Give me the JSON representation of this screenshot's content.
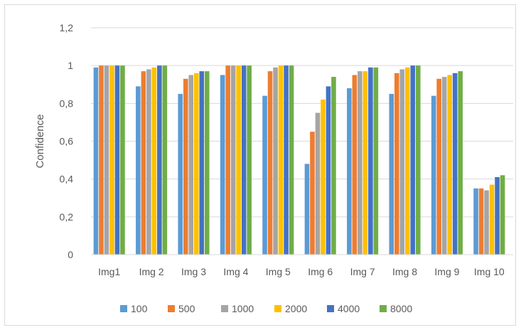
{
  "chart_data": {
    "type": "bar",
    "title": "",
    "xlabel": "",
    "ylabel": "Confidence",
    "ylim": [
      0,
      1.2
    ],
    "yticks": [
      "0",
      "0,2",
      "0,4",
      "0,6",
      "0,8",
      "1",
      "1,2"
    ],
    "ytick_values": [
      0,
      0.2,
      0.4,
      0.6,
      0.8,
      1.0,
      1.2
    ],
    "grid": true,
    "legend_position": "bottom",
    "categories": [
      "Img1",
      "Img 2",
      "Img 3",
      "Img 4",
      "Img 5",
      "Img 6",
      "Img 7",
      "Img 8",
      "Img 9",
      "Img 10"
    ],
    "series": [
      {
        "name": "100",
        "color": "#5B9BD5",
        "values": [
          0.99,
          0.89,
          0.85,
          0.95,
          0.84,
          0.48,
          0.88,
          0.85,
          0.84,
          0.35
        ]
      },
      {
        "name": "500",
        "color": "#ED7D31",
        "values": [
          1.0,
          0.97,
          0.93,
          1.0,
          0.97,
          0.65,
          0.95,
          0.96,
          0.93,
          0.35
        ]
      },
      {
        "name": "1000",
        "color": "#A5A5A5",
        "values": [
          1.0,
          0.98,
          0.95,
          1.0,
          0.99,
          0.75,
          0.97,
          0.98,
          0.94,
          0.34
        ]
      },
      {
        "name": "2000",
        "color": "#FFC000",
        "values": [
          1.0,
          0.99,
          0.96,
          1.0,
          1.0,
          0.82,
          0.97,
          0.99,
          0.95,
          0.37
        ]
      },
      {
        "name": "4000",
        "color": "#4472C4",
        "values": [
          1.0,
          1.0,
          0.97,
          1.0,
          1.0,
          0.89,
          0.99,
          1.0,
          0.96,
          0.41
        ]
      },
      {
        "name": "8000",
        "color": "#70AD47",
        "values": [
          1.0,
          1.0,
          0.97,
          1.0,
          1.0,
          0.94,
          0.99,
          1.0,
          0.97,
          0.42
        ]
      }
    ]
  }
}
